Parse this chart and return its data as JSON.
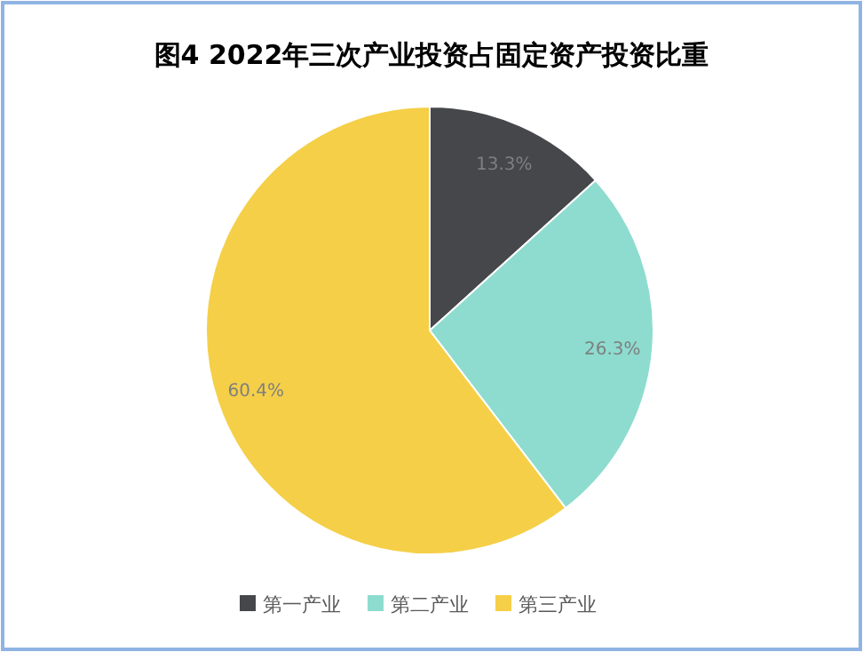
{
  "chart_data": {
    "type": "pie",
    "title": "图4  2022年三次产业投资占固定资产投资比重",
    "categories": [
      "第一产业",
      "第二产业",
      "第三产业"
    ],
    "values": [
      13.3,
      26.3,
      60.4
    ],
    "colors": [
      "#46474b",
      "#8ddccf",
      "#f5cf47"
    ],
    "value_labels": [
      "13.3%",
      "26.3%",
      "60.4%"
    ],
    "legend": "bottom"
  }
}
